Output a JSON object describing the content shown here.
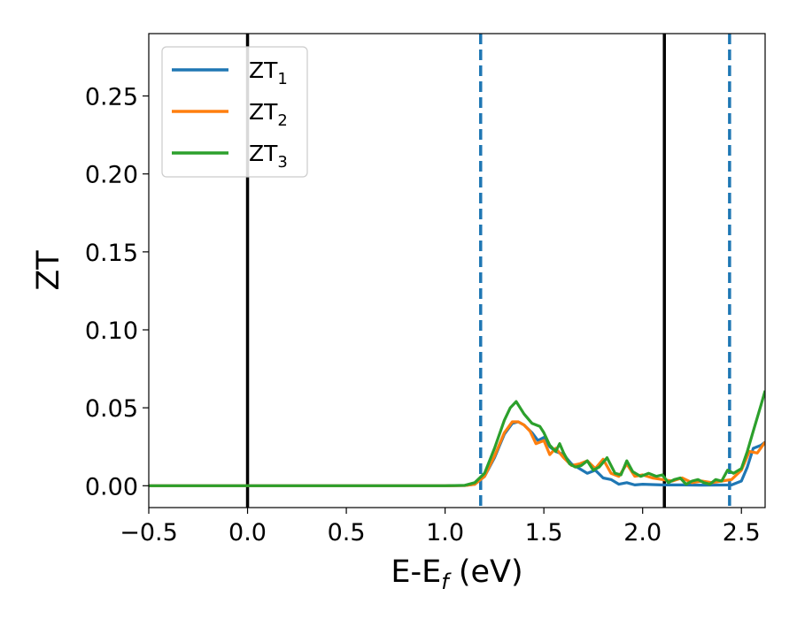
{
  "chart_data": {
    "type": "line",
    "xlabel_main": "E-E",
    "xlabel_sub": "f",
    "xlabel_unit": " (eV)",
    "ylabel": "ZT",
    "xlim": [
      -0.5,
      2.62
    ],
    "ylim": [
      -0.014,
      0.29
    ],
    "grid": false,
    "legend_position": "top-left",
    "xticks": [
      {
        "value": -0.5,
        "label": "−0.5"
      },
      {
        "value": 0.0,
        "label": "0.0"
      },
      {
        "value": 0.5,
        "label": "0.5"
      },
      {
        "value": 1.0,
        "label": "1.0"
      },
      {
        "value": 1.5,
        "label": "1.5"
      },
      {
        "value": 2.0,
        "label": "2.0"
      },
      {
        "value": 2.5,
        "label": "2.5"
      }
    ],
    "yticks": [
      {
        "value": 0.0,
        "label": "0.00"
      },
      {
        "value": 0.05,
        "label": "0.05"
      },
      {
        "value": 0.1,
        "label": "0.10"
      },
      {
        "value": 0.15,
        "label": "0.15"
      },
      {
        "value": 0.2,
        "label": "0.20"
      },
      {
        "value": 0.25,
        "label": "0.25"
      }
    ],
    "vlines": [
      {
        "x": 0.0,
        "style": "solid",
        "color": "#000000"
      },
      {
        "x": 1.18,
        "style": "dashed",
        "color": "#1f77b4"
      },
      {
        "x": 2.11,
        "style": "solid",
        "color": "#000000"
      },
      {
        "x": 2.44,
        "style": "dashed",
        "color": "#1f77b4"
      }
    ],
    "series": [
      {
        "name": "ZT",
        "name_sub": "1",
        "color": "#1f77b4",
        "x": [
          -0.5,
          0.5,
          1.0,
          1.1,
          1.15,
          1.2,
          1.25,
          1.3,
          1.34,
          1.37,
          1.4,
          1.44,
          1.47,
          1.5,
          1.53,
          1.56,
          1.6,
          1.64,
          1.68,
          1.72,
          1.76,
          1.8,
          1.84,
          1.88,
          1.92,
          1.96,
          2.0,
          2.1,
          2.2,
          2.3,
          2.45,
          2.5,
          2.53,
          2.56,
          2.6,
          2.62
        ],
        "y": [
          0.0,
          0.0,
          0.0,
          0.0002,
          0.001,
          0.006,
          0.018,
          0.033,
          0.04,
          0.041,
          0.039,
          0.034,
          0.029,
          0.031,
          0.025,
          0.022,
          0.02,
          0.014,
          0.011,
          0.008,
          0.01,
          0.005,
          0.004,
          0.001,
          0.002,
          0.0005,
          0.001,
          0.0005,
          0.0005,
          0.0004,
          0.0005,
          0.003,
          0.012,
          0.024,
          0.026,
          0.028
        ]
      },
      {
        "name": "ZT",
        "name_sub": "2",
        "color": "#ff7f0e",
        "x": [
          -0.5,
          0.5,
          1.0,
          1.1,
          1.15,
          1.2,
          1.25,
          1.3,
          1.34,
          1.37,
          1.4,
          1.43,
          1.46,
          1.5,
          1.53,
          1.56,
          1.6,
          1.64,
          1.68,
          1.72,
          1.76,
          1.8,
          1.84,
          1.88,
          1.92,
          1.96,
          2.0,
          2.05,
          2.1,
          2.15,
          2.2,
          2.25,
          2.3,
          2.35,
          2.4,
          2.45,
          2.5,
          2.54,
          2.58,
          2.62
        ],
        "y": [
          0.0,
          0.0,
          0.0,
          0.0002,
          0.001,
          0.006,
          0.019,
          0.034,
          0.041,
          0.041,
          0.039,
          0.035,
          0.027,
          0.029,
          0.02,
          0.024,
          0.018,
          0.013,
          0.014,
          0.016,
          0.011,
          0.017,
          0.008,
          0.006,
          0.014,
          0.006,
          0.007,
          0.005,
          0.004,
          0.003,
          0.005,
          0.002,
          0.003,
          0.002,
          0.003,
          0.004,
          0.01,
          0.022,
          0.021,
          0.028
        ]
      },
      {
        "name": "ZT",
        "name_sub": "3",
        "color": "#2ca02c",
        "x": [
          -0.5,
          0.5,
          1.0,
          1.1,
          1.15,
          1.2,
          1.25,
          1.3,
          1.33,
          1.36,
          1.4,
          1.44,
          1.48,
          1.5,
          1.53,
          1.56,
          1.58,
          1.6,
          1.63,
          1.66,
          1.69,
          1.72,
          1.75,
          1.78,
          1.82,
          1.86,
          1.89,
          1.92,
          1.95,
          1.99,
          2.03,
          2.07,
          2.1,
          2.13,
          2.16,
          2.19,
          2.22,
          2.25,
          2.28,
          2.31,
          2.34,
          2.37,
          2.4,
          2.43,
          2.46,
          2.5,
          2.53,
          2.56,
          2.6,
          2.62
        ],
        "y": [
          0.0,
          0.0,
          0.0,
          0.0003,
          0.002,
          0.008,
          0.024,
          0.042,
          0.05,
          0.054,
          0.046,
          0.04,
          0.038,
          0.034,
          0.026,
          0.022,
          0.027,
          0.021,
          0.014,
          0.012,
          0.013,
          0.016,
          0.01,
          0.012,
          0.018,
          0.008,
          0.007,
          0.016,
          0.009,
          0.006,
          0.008,
          0.006,
          0.007,
          0.002,
          0.004,
          0.005,
          0.001,
          0.003,
          0.004,
          0.002,
          0.001,
          0.004,
          0.003,
          0.01,
          0.008,
          0.011,
          0.022,
          0.035,
          0.052,
          0.061
        ]
      }
    ]
  }
}
